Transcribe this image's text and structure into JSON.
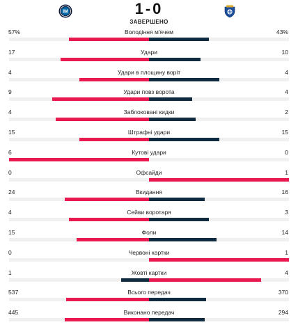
{
  "match": {
    "home_logo": "inter-milan-crest-icon",
    "away_logo": "fc-porto-crest-icon",
    "score": "1-0",
    "status": "ЗАВЕРШЕНО"
  },
  "colors": {
    "home": "#e8194f",
    "away": "#102a3f",
    "track": "#f0f0f0"
  },
  "stats": [
    {
      "label": "Володіння м'ячем",
      "home": "57%",
      "away": "43%",
      "home_value": 57,
      "away_value": 43
    },
    {
      "label": "Удари",
      "home": "17",
      "away": "10",
      "home_value": 17,
      "away_value": 10
    },
    {
      "label": "Удари в площину воріт",
      "home": "4",
      "away": "4",
      "home_value": 4,
      "away_value": 4
    },
    {
      "label": "Удари повз ворота",
      "home": "9",
      "away": "4",
      "home_value": 9,
      "away_value": 4
    },
    {
      "label": "Заблоковані кидки",
      "home": "4",
      "away": "2",
      "home_value": 4,
      "away_value": 2
    },
    {
      "label": "Штрафні удари",
      "home": "15",
      "away": "15",
      "home_value": 15,
      "away_value": 15
    },
    {
      "label": "Кутові удари",
      "home": "6",
      "away": "0",
      "home_value": 6,
      "away_value": 0
    },
    {
      "label": "Офсайди",
      "home": "0",
      "away": "1",
      "home_value": 0,
      "away_value": 1
    },
    {
      "label": "Вкидання",
      "home": "24",
      "away": "16",
      "home_value": 24,
      "away_value": 16
    },
    {
      "label": "Сейви воротаря",
      "home": "4",
      "away": "3",
      "home_value": 4,
      "away_value": 3
    },
    {
      "label": "Фоли",
      "home": "15",
      "away": "14",
      "home_value": 15,
      "away_value": 14
    },
    {
      "label": "Червоні картки",
      "home": "0",
      "away": "1",
      "home_value": 0,
      "away_value": 1
    },
    {
      "label": "Жовті картки",
      "home": "1",
      "away": "4",
      "home_value": 1,
      "away_value": 4
    },
    {
      "label": "Всього передач",
      "home": "537",
      "away": "370",
      "home_value": 537,
      "away_value": 370
    },
    {
      "label": "Виконано передач",
      "home": "445",
      "away": "294",
      "home_value": 445,
      "away_value": 294
    }
  ]
}
